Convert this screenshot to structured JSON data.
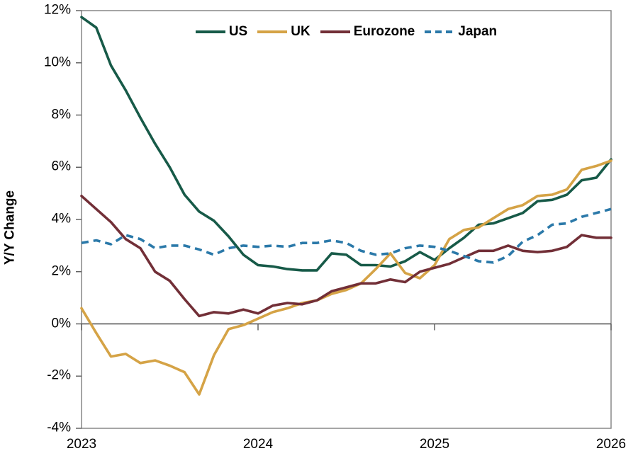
{
  "chart_data": {
    "type": "line",
    "title": "",
    "ylabel": "Y/Y Change",
    "x_start": "2023-01",
    "x_end": "2026-01",
    "frequency": "monthly",
    "x_tick_labels": [
      "2023",
      "2024",
      "2025",
      "2026"
    ],
    "x_tick_month_index": [
      0,
      12,
      24,
      36
    ],
    "y_tick_labels": [
      "-4%",
      "-2%",
      "0%",
      "2%",
      "4%",
      "6%",
      "8%",
      "10%",
      "12%"
    ],
    "y_tick_values": [
      -4,
      -2,
      0,
      2,
      4,
      6,
      8,
      10,
      12
    ],
    "ylim": [
      -4,
      12
    ],
    "grid": "zero-line-only",
    "legend_position": "top-center",
    "axis_colors": {
      "border": "#7f7f7f",
      "zero_line": "#4d4d4d",
      "tick": "#595959"
    },
    "series": [
      {
        "name": "US",
        "color": "#175A48",
        "style": "solid",
        "values": [
          11.75,
          11.35,
          9.9,
          8.95,
          7.9,
          6.9,
          6.0,
          4.95,
          4.3,
          3.95,
          3.35,
          2.65,
          2.25,
          2.2,
          2.1,
          2.05,
          2.05,
          2.7,
          2.65,
          2.25,
          2.25,
          2.2,
          2.4,
          2.75,
          2.45,
          2.9,
          3.3,
          3.8,
          3.85,
          4.05,
          4.25,
          4.7,
          4.75,
          4.95,
          5.5,
          5.6,
          6.3
        ]
      },
      {
        "name": "UK",
        "color": "#D5A346",
        "style": "solid",
        "values": [
          0.6,
          -0.35,
          -1.25,
          -1.15,
          -1.5,
          -1.4,
          -1.6,
          -1.85,
          -2.7,
          -1.2,
          -0.2,
          -0.05,
          0.2,
          0.45,
          0.6,
          0.8,
          0.9,
          1.15,
          1.3,
          1.55,
          2.1,
          2.7,
          1.95,
          1.75,
          2.25,
          3.25,
          3.6,
          3.7,
          4.05,
          4.4,
          4.55,
          4.9,
          4.95,
          5.15,
          5.9,
          6.05,
          6.25
        ]
      },
      {
        "name": "Eurozone",
        "color": "#722F37",
        "style": "solid",
        "values": [
          4.9,
          4.4,
          3.9,
          3.25,
          2.9,
          2.0,
          1.65,
          0.95,
          0.3,
          0.45,
          0.4,
          0.55,
          0.4,
          0.7,
          0.8,
          0.75,
          0.9,
          1.25,
          1.4,
          1.55,
          1.55,
          1.7,
          1.6,
          2.0,
          2.15,
          2.3,
          2.55,
          2.8,
          2.8,
          3.0,
          2.8,
          2.75,
          2.8,
          2.95,
          3.4,
          3.3,
          3.3
        ]
      },
      {
        "name": "Japan",
        "color": "#2B79A9",
        "style": "dashed",
        "values": [
          3.1,
          3.2,
          3.05,
          3.4,
          3.25,
          2.9,
          3.0,
          3.0,
          2.85,
          2.65,
          2.9,
          3.0,
          2.95,
          3.0,
          2.95,
          3.1,
          3.1,
          3.2,
          3.1,
          2.8,
          2.65,
          2.7,
          2.9,
          3.0,
          2.95,
          2.8,
          2.6,
          2.4,
          2.35,
          2.6,
          3.15,
          3.4,
          3.8,
          3.85,
          4.1,
          4.25,
          4.4
        ]
      }
    ]
  }
}
